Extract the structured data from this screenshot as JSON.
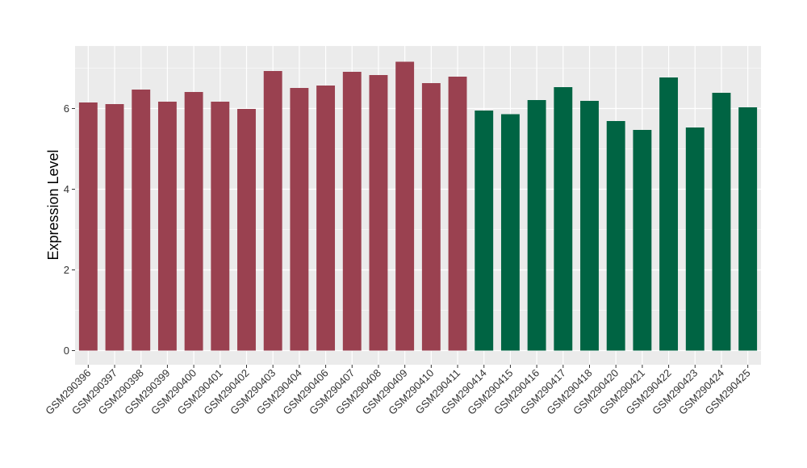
{
  "chart_data": {
    "type": "bar",
    "ylabel": "Expression Level",
    "xlabel": "",
    "ylim": [
      -0.35,
      7.55
    ],
    "yticks": [
      0,
      2,
      4,
      6
    ],
    "grid": true,
    "background_color": "#EBEBEB",
    "grid_color": "#FFFFFF",
    "colors": {
      "group1": "#9A4150",
      "group2": "#006443"
    },
    "categories": [
      "GSM290396",
      "GSM290397",
      "GSM290398",
      "GSM290399",
      "GSM290400",
      "GSM290401",
      "GSM290402",
      "GSM290403",
      "GSM290404",
      "GSM290406",
      "GSM290407",
      "GSM290408",
      "GSM290409",
      "GSM290410",
      "GSM290411",
      "GSM290414",
      "GSM290415",
      "GSM290416",
      "GSM290417",
      "GSM290418",
      "GSM290420",
      "GSM290421",
      "GSM290422",
      "GSM290423",
      "GSM290424",
      "GSM290425"
    ],
    "values": [
      6.15,
      6.11,
      6.47,
      6.17,
      6.41,
      6.17,
      5.99,
      6.93,
      6.51,
      6.57,
      6.91,
      6.83,
      7.16,
      6.63,
      6.79,
      5.95,
      5.86,
      6.21,
      6.53,
      6.19,
      5.69,
      5.47,
      6.77,
      5.53,
      6.39,
      6.03
    ],
    "groups": [
      "group1",
      "group1",
      "group1",
      "group1",
      "group1",
      "group1",
      "group1",
      "group1",
      "group1",
      "group1",
      "group1",
      "group1",
      "group1",
      "group1",
      "group1",
      "group2",
      "group2",
      "group2",
      "group2",
      "group2",
      "group2",
      "group2",
      "group2",
      "group2",
      "group2",
      "group2"
    ]
  }
}
